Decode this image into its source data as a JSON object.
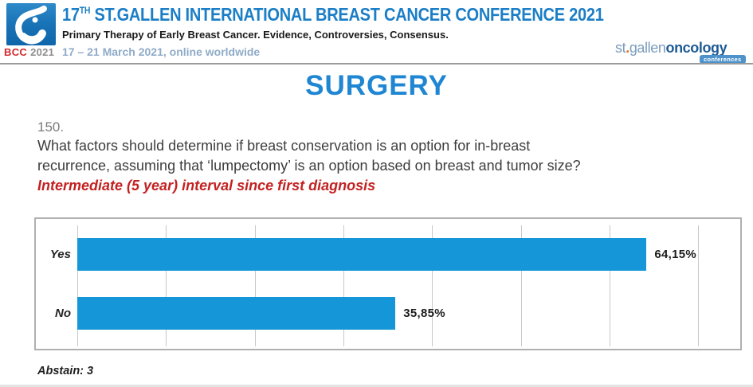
{
  "header": {
    "logo": {
      "bcc": "BCC",
      "year": "2021"
    },
    "title": {
      "num": "17",
      "sup": "TH",
      "rest": " ST.GALLEN INTERNATIONAL BREAST CANCER CONFERENCE 2021"
    },
    "subtitle": "Primary Therapy of Early Breast Cancer. Evidence, Controversies, Consensus.",
    "dates": "17 – 21 March 2021, online worldwide",
    "brand": {
      "stgallen_st": "st",
      "dot": ".",
      "stgallen_rest": "gallen",
      "oncology": "oncology",
      "badge": "conferences"
    }
  },
  "main": {
    "section_title": "SURGERY",
    "question_number": "150.",
    "question_lines": [
      "What factors should determine if breast conservation is an option for in-breast",
      "recurrence, assuming that ‘lumpectomy’ is an option based on breast and tumor size?"
    ],
    "condition": "Intermediate (5 year) interval since first diagnosis",
    "abstain": "Abstain: 3"
  },
  "chart_data": {
    "type": "bar",
    "orientation": "horizontal",
    "categories": [
      "Yes",
      "No"
    ],
    "values": [
      64.15,
      35.85
    ],
    "value_labels": [
      "64,15%",
      "35,85%"
    ],
    "title": "",
    "xlabel": "",
    "ylabel": "",
    "xlim": [
      0,
      74
    ],
    "gridline_step": 10,
    "grid": true,
    "legend": false,
    "bar_color": "#1496d8"
  },
  "colors": {
    "title_blue": "#1b7ec6",
    "section_blue": "#1e86d2",
    "bar_blue": "#1496d8",
    "condition_red": "#c32121",
    "bcc_red": "#d3292b",
    "logo_blue": "#1a74b8",
    "brand_light_blue": "#7b9cbd",
    "brand_dark_blue": "#1d5a94"
  }
}
